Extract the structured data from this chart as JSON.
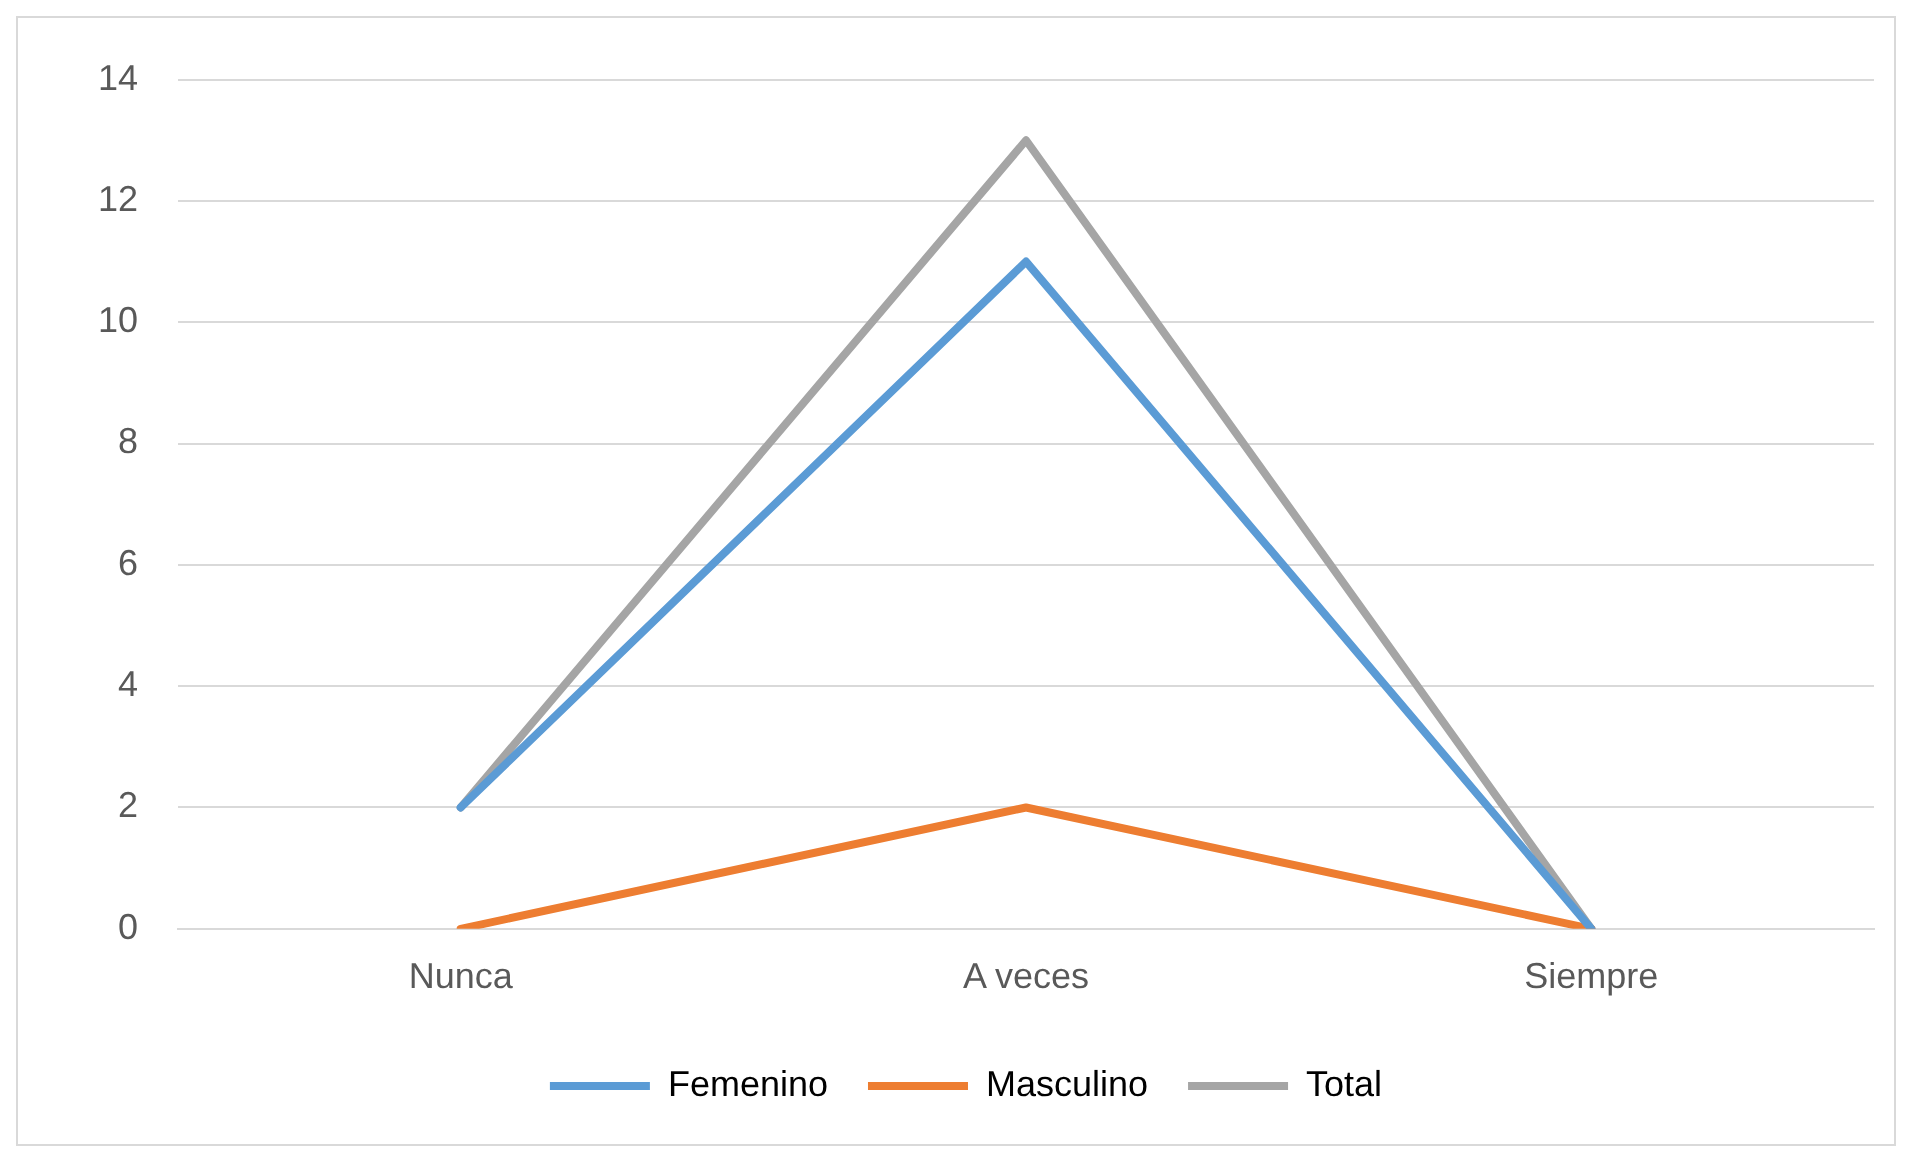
{
  "chart_data": {
    "type": "line",
    "categories": [
      "Nunca",
      "A veces",
      "Siempre"
    ],
    "series": [
      {
        "name": "Femenino",
        "color": "#5b9bd5",
        "values": [
          2,
          11,
          0
        ]
      },
      {
        "name": "Masculino",
        "color": "#ed7d31",
        "values": [
          0,
          2,
          0
        ]
      },
      {
        "name": "Total",
        "color": "#a5a5a5",
        "values": [
          2,
          13,
          0
        ]
      }
    ],
    "ylim": [
      0,
      14
    ],
    "yticks": [
      0,
      2,
      4,
      6,
      8,
      10,
      12,
      14
    ],
    "grid": "y",
    "legend": "bottom",
    "marker": "none",
    "line_style": "solid"
  }
}
